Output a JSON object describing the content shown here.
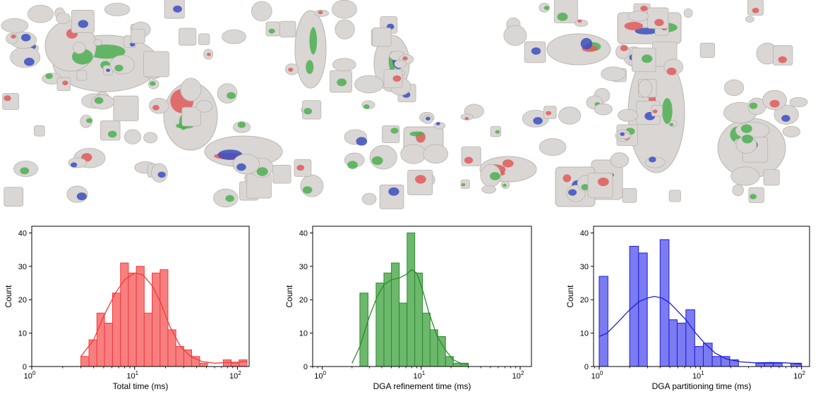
{
  "gallery": {
    "description_icon": "3d-model-gallery",
    "model_colors": [
      "#d9d6d3",
      "#e05a5a",
      "#4caf50",
      "#3a4fbf"
    ]
  },
  "chart_data": [
    {
      "type": "histogram",
      "xlabel": "Total time (ms)",
      "ylabel": "Count",
      "xscale": "log",
      "xlim": [
        1,
        130
      ],
      "ylim": [
        0,
        42
      ],
      "xticks": [
        {
          "v": 1,
          "label": "10",
          "sup": "0"
        },
        {
          "v": 10,
          "label": "10",
          "sup": "1"
        },
        {
          "v": 100,
          "label": "10",
          "sup": "2"
        }
      ],
      "yticks": [
        0,
        10,
        20,
        30,
        40
      ],
      "color": "#f23b3b",
      "fill": "#f77f7f",
      "bins": [
        {
          "x0": 3.0,
          "x1": 3.6,
          "count": 3
        },
        {
          "x0": 3.6,
          "x1": 4.3,
          "count": 8
        },
        {
          "x0": 4.3,
          "x1": 5.1,
          "count": 16
        },
        {
          "x0": 5.1,
          "x1": 6.1,
          "count": 13
        },
        {
          "x0": 6.1,
          "x1": 7.3,
          "count": 22
        },
        {
          "x0": 7.3,
          "x1": 8.7,
          "count": 31
        },
        {
          "x0": 8.7,
          "x1": 10.4,
          "count": 28
        },
        {
          "x0": 10.4,
          "x1": 12.4,
          "count": 30
        },
        {
          "x0": 12.4,
          "x1": 14.8,
          "count": 16
        },
        {
          "x0": 14.8,
          "x1": 17.7,
          "count": 28
        },
        {
          "x0": 17.7,
          "x1": 21.1,
          "count": 29
        },
        {
          "x0": 21.1,
          "x1": 25.2,
          "count": 11
        },
        {
          "x0": 25.2,
          "x1": 30.1,
          "count": 6
        },
        {
          "x0": 30.1,
          "x1": 35.9,
          "count": 5
        },
        {
          "x0": 35.9,
          "x1": 42.9,
          "count": 3
        },
        {
          "x0": 42.9,
          "x1": 51.2,
          "count": 1
        },
        {
          "x0": 51.2,
          "x1": 61.1,
          "count": 0
        },
        {
          "x0": 61.1,
          "x1": 72.9,
          "count": 0
        },
        {
          "x0": 72.9,
          "x1": 87.1,
          "count": 2
        },
        {
          "x0": 87.1,
          "x1": 104.0,
          "count": 1
        },
        {
          "x0": 104.0,
          "x1": 124.0,
          "count": 2
        }
      ],
      "kde": [
        [
          3.0,
          3
        ],
        [
          4.0,
          8
        ],
        [
          5.0,
          15
        ],
        [
          6.5,
          22
        ],
        [
          8.0,
          26
        ],
        [
          10.0,
          28
        ],
        [
          12.0,
          27.5
        ],
        [
          15.0,
          24
        ],
        [
          18.0,
          19
        ],
        [
          22.0,
          12
        ],
        [
          28.0,
          6
        ],
        [
          35.0,
          3
        ],
        [
          45.0,
          1.5
        ],
        [
          60.0,
          1
        ],
        [
          80.0,
          1.2
        ],
        [
          100.0,
          1.3
        ],
        [
          124.0,
          1.5
        ]
      ]
    },
    {
      "type": "histogram",
      "xlabel": "DGA refinement time (ms)",
      "ylabel": "Count",
      "xscale": "log",
      "xlim": [
        0.8,
        130
      ],
      "ylim": [
        0,
        42
      ],
      "xticks": [
        {
          "v": 1,
          "label": "10",
          "sup": "0"
        },
        {
          "v": 10,
          "label": "10",
          "sup": "1"
        },
        {
          "v": 100,
          "label": "10",
          "sup": "2"
        }
      ],
      "yticks": [
        0,
        10,
        20,
        30,
        40
      ],
      "color": "#2e8b2e",
      "fill": "#6cb86c",
      "bins": [
        {
          "x0": 2.0,
          "x1": 2.4,
          "count": 0
        },
        {
          "x0": 2.4,
          "x1": 2.9,
          "count": 22
        },
        {
          "x0": 2.9,
          "x1": 3.5,
          "count": 0
        },
        {
          "x0": 3.5,
          "x1": 4.2,
          "count": 25
        },
        {
          "x0": 4.2,
          "x1": 5.0,
          "count": 28
        },
        {
          "x0": 5.0,
          "x1": 6.0,
          "count": 31
        },
        {
          "x0": 6.0,
          "x1": 7.2,
          "count": 19
        },
        {
          "x0": 7.2,
          "x1": 8.6,
          "count": 40
        },
        {
          "x0": 8.6,
          "x1": 10.3,
          "count": 28
        },
        {
          "x0": 10.3,
          "x1": 12.3,
          "count": 16
        },
        {
          "x0": 12.3,
          "x1": 14.7,
          "count": 11
        },
        {
          "x0": 14.7,
          "x1": 17.6,
          "count": 9
        },
        {
          "x0": 17.6,
          "x1": 21.1,
          "count": 3
        },
        {
          "x0": 21.1,
          "x1": 25.2,
          "count": 1
        },
        {
          "x0": 25.2,
          "x1": 30.0,
          "count": 1
        }
      ],
      "kde": [
        [
          2.0,
          1
        ],
        [
          2.4,
          6
        ],
        [
          3.0,
          15
        ],
        [
          3.6,
          21
        ],
        [
          4.2,
          24.5
        ],
        [
          5.0,
          26
        ],
        [
          6.0,
          26.5
        ],
        [
          7.0,
          27.5
        ],
        [
          8.0,
          29
        ],
        [
          9.0,
          28
        ],
        [
          10.3,
          23
        ],
        [
          12.0,
          16
        ],
        [
          14.5,
          9
        ],
        [
          17.5,
          5
        ],
        [
          21.0,
          2
        ],
        [
          25.0,
          1
        ],
        [
          30.0,
          0.5
        ]
      ]
    },
    {
      "type": "histogram",
      "xlabel": "DGA partitioning time (ms)",
      "ylabel": "Count",
      "xscale": "log",
      "xlim": [
        0.88,
        120
      ],
      "ylim": [
        0,
        42
      ],
      "xticks": [
        {
          "v": 1,
          "label": "10",
          "sup": "0"
        },
        {
          "v": 10,
          "label": "10",
          "sup": "1"
        },
        {
          "v": 100,
          "label": "10",
          "sup": "2"
        }
      ],
      "yticks": [
        0,
        10,
        20,
        30,
        40
      ],
      "color": "#1f1fd6",
      "fill": "#7b7bf2",
      "bins": [
        {
          "x0": 1.0,
          "x1": 1.22,
          "count": 27
        },
        {
          "x0": 1.22,
          "x1": 1.49,
          "count": 0
        },
        {
          "x0": 1.49,
          "x1": 2.0,
          "count": 0
        },
        {
          "x0": 2.0,
          "x1": 2.45,
          "count": 36
        },
        {
          "x0": 2.45,
          "x1": 2.99,
          "count": 34
        },
        {
          "x0": 2.99,
          "x1": 4.0,
          "count": 0
        },
        {
          "x0": 4.0,
          "x1": 4.9,
          "count": 38
        },
        {
          "x0": 4.9,
          "x1": 5.9,
          "count": 14
        },
        {
          "x0": 5.9,
          "x1": 7.2,
          "count": 13
        },
        {
          "x0": 7.2,
          "x1": 8.8,
          "count": 17
        },
        {
          "x0": 8.8,
          "x1": 10.7,
          "count": 6
        },
        {
          "x0": 10.7,
          "x1": 13.1,
          "count": 7
        },
        {
          "x0": 13.1,
          "x1": 16.0,
          "count": 3
        },
        {
          "x0": 16.0,
          "x1": 19.5,
          "count": 3
        },
        {
          "x0": 19.5,
          "x1": 23.8,
          "count": 2
        },
        {
          "x0": 23.8,
          "x1": 29.0,
          "count": 0
        },
        {
          "x0": 29.0,
          "x1": 35.4,
          "count": 0
        },
        {
          "x0": 35.4,
          "x1": 43.2,
          "count": 1
        },
        {
          "x0": 43.2,
          "x1": 52.7,
          "count": 1
        },
        {
          "x0": 52.7,
          "x1": 64.3,
          "count": 1
        },
        {
          "x0": 64.3,
          "x1": 78.4,
          "count": 0
        },
        {
          "x0": 78.4,
          "x1": 100.0,
          "count": 1
        }
      ],
      "kde": [
        [
          1.0,
          9
        ],
        [
          1.2,
          10
        ],
        [
          1.5,
          13
        ],
        [
          2.0,
          17
        ],
        [
          2.5,
          19.5
        ],
        [
          3.0,
          20.5
        ],
        [
          3.5,
          21
        ],
        [
          4.2,
          20.5
        ],
        [
          5.0,
          19
        ],
        [
          6.0,
          16.5
        ],
        [
          7.2,
          14
        ],
        [
          9.0,
          10
        ],
        [
          11.0,
          7
        ],
        [
          14.0,
          4
        ],
        [
          18.0,
          2.3
        ],
        [
          25.0,
          1.4
        ],
        [
          35.0,
          1.1
        ],
        [
          50.0,
          1.2
        ],
        [
          70.0,
          1.1
        ],
        [
          100.0,
          0.7
        ]
      ]
    }
  ]
}
